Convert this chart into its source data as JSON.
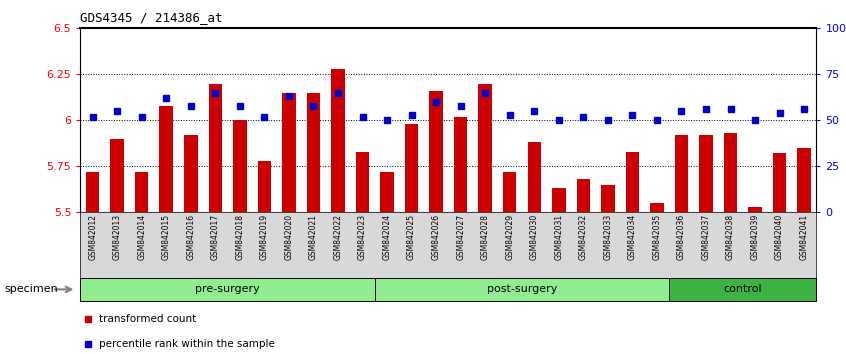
{
  "title": "GDS4345 / 214386_at",
  "samples": [
    "GSM842012",
    "GSM842013",
    "GSM842014",
    "GSM842015",
    "GSM842016",
    "GSM842017",
    "GSM842018",
    "GSM842019",
    "GSM842020",
    "GSM842021",
    "GSM842022",
    "GSM842023",
    "GSM842024",
    "GSM842025",
    "GSM842026",
    "GSM842027",
    "GSM842028",
    "GSM842029",
    "GSM842030",
    "GSM842031",
    "GSM842032",
    "GSM842033",
    "GSM842034",
    "GSM842035",
    "GSM842036",
    "GSM842037",
    "GSM842038",
    "GSM842039",
    "GSM842040",
    "GSM842041"
  ],
  "bar_values": [
    5.72,
    5.9,
    5.72,
    6.08,
    5.92,
    6.2,
    6.0,
    5.78,
    6.15,
    6.15,
    6.28,
    5.83,
    5.72,
    5.98,
    6.16,
    6.02,
    6.2,
    5.72,
    5.88,
    5.63,
    5.68,
    5.65,
    5.83,
    5.55,
    5.92,
    5.92,
    5.93,
    5.53,
    5.82,
    5.85
  ],
  "percentile_values": [
    52,
    55,
    52,
    62,
    58,
    65,
    58,
    52,
    63,
    58,
    65,
    52,
    50,
    53,
    60,
    58,
    65,
    53,
    55,
    50,
    52,
    50,
    53,
    50,
    55,
    56,
    56,
    50,
    54,
    56
  ],
  "groups": [
    {
      "name": "pre-surgery",
      "start": 0,
      "end": 11,
      "color": "#90EE90"
    },
    {
      "name": "post-surgery",
      "start": 12,
      "end": 23,
      "color": "#90EE90"
    },
    {
      "name": "control",
      "start": 24,
      "end": 29,
      "color": "#3CB343"
    }
  ],
  "bar_color": "#CC0000",
  "dot_color": "#0000CC",
  "ylim_left": [
    5.5,
    6.5
  ],
  "ylim_right": [
    0,
    100
  ],
  "yticks_left": [
    5.5,
    5.75,
    6.0,
    6.25,
    6.5
  ],
  "yticks_right": [
    0,
    25,
    50,
    75,
    100
  ],
  "ytick_labels_left": [
    "5.5",
    "5.75",
    "6",
    "6.25",
    "6.5"
  ],
  "ytick_labels_right": [
    "0",
    "25",
    "50",
    "75",
    "100%"
  ],
  "hlines": [
    5.75,
    6.0,
    6.25
  ],
  "specimen_label": "specimen",
  "legend_items": [
    {
      "label": "transformed count",
      "color": "#CC0000"
    },
    {
      "label": "percentile rank within the sample",
      "color": "#0000CC"
    }
  ]
}
